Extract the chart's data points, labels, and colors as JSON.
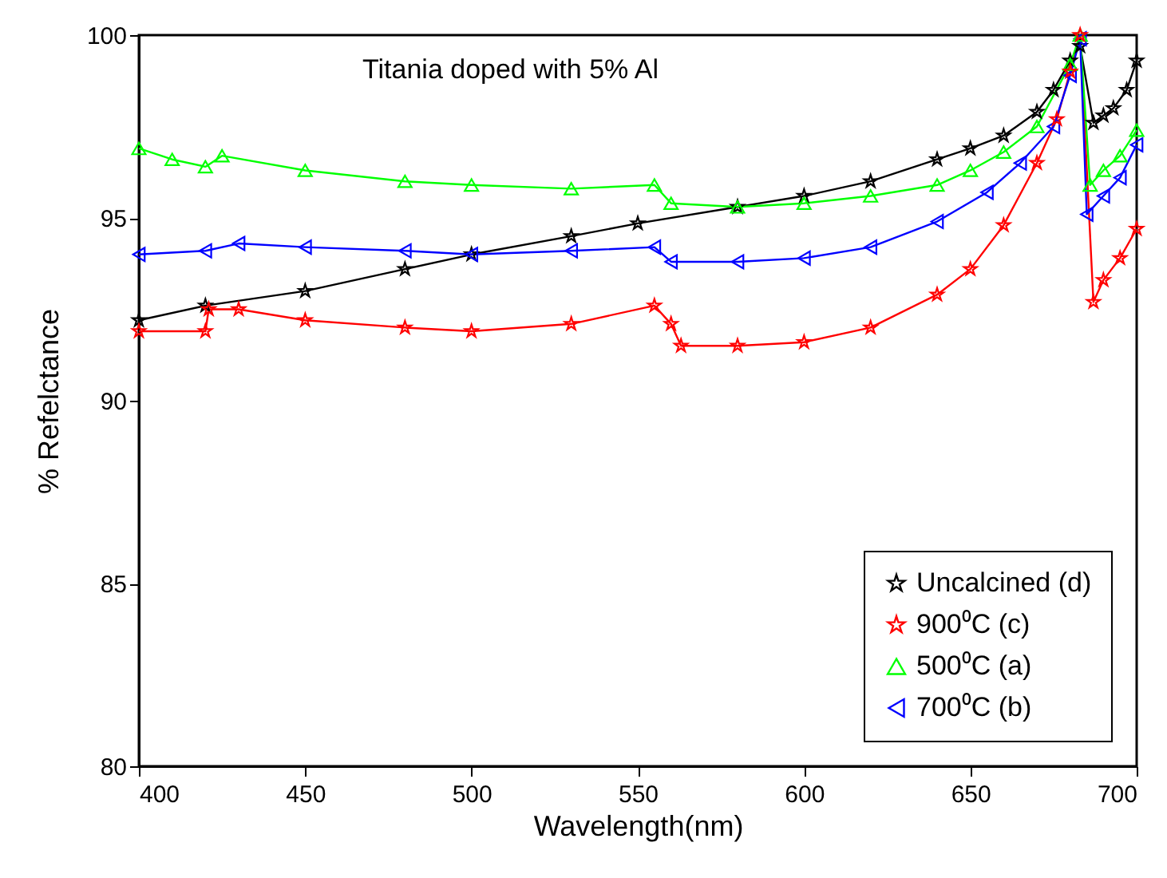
{
  "chart_data": {
    "type": "line",
    "annotations": [
      "Titania doped with 5% Al"
    ],
    "xlabel": "Wavelength(nm)",
    "ylabel": "% Refelctance",
    "xlim": [
      400,
      700
    ],
    "xticks": [
      400,
      450,
      500,
      550,
      600,
      650,
      700
    ],
    "ylim": [
      80,
      100
    ],
    "yticks": [
      80,
      85,
      90,
      95,
      100
    ],
    "grid": false,
    "legend": "bottom right",
    "line_style": "solid",
    "series": [
      {
        "name": "Uncalcined (d)",
        "color": "#000000",
        "marker": "star",
        "x": [
          400,
          420,
          450,
          480,
          500,
          530,
          550,
          580,
          600,
          620,
          640,
          650,
          660,
          670,
          675,
          680,
          683,
          687,
          690,
          693,
          697,
          700
        ],
        "values": [
          92.2,
          92.6,
          93.0,
          93.6,
          94.0,
          94.5,
          94.85,
          95.3,
          95.6,
          96.0,
          96.6,
          96.9,
          97.25,
          97.9,
          98.5,
          99.3,
          99.7,
          97.6,
          97.8,
          98.0,
          98.5,
          99.3
        ]
      },
      {
        "name": "900⁰C (c)",
        "color": "#ff0000",
        "marker": "star",
        "x": [
          400,
          420,
          421,
          430,
          450,
          480,
          500,
          530,
          555,
          560,
          563,
          580,
          600,
          620,
          640,
          650,
          660,
          670,
          676,
          680,
          683,
          687,
          690,
          695,
          700
        ],
        "values": [
          91.9,
          91.9,
          92.5,
          92.5,
          92.2,
          92.0,
          91.9,
          92.1,
          92.6,
          92.1,
          91.5,
          91.5,
          91.6,
          92.0,
          92.9,
          93.6,
          94.8,
          96.5,
          97.7,
          99.0,
          100,
          92.7,
          93.3,
          93.9,
          94.7
        ]
      },
      {
        "name": "500⁰C (a)",
        "color": "#00ff00",
        "marker": "triangle",
        "x": [
          400,
          410,
          420,
          425,
          450,
          480,
          500,
          530,
          555,
          560,
          580,
          600,
          620,
          640,
          650,
          660,
          670,
          680,
          683,
          686,
          690,
          695,
          700
        ],
        "values": [
          96.9,
          96.6,
          96.4,
          96.7,
          96.3,
          96.0,
          95.9,
          95.8,
          95.9,
          95.4,
          95.3,
          95.4,
          95.6,
          95.9,
          96.3,
          96.8,
          97.5,
          99.2,
          100,
          95.9,
          96.3,
          96.7,
          97.4
        ]
      },
      {
        "name": "700⁰C (b)",
        "color": "#0000ff",
        "marker": "triangle-left",
        "x": [
          400,
          420,
          430,
          450,
          480,
          500,
          530,
          555,
          560,
          580,
          600,
          620,
          640,
          655,
          665,
          675,
          680,
          683,
          685,
          690,
          695,
          700
        ],
        "values": [
          94.0,
          94.1,
          94.3,
          94.2,
          94.1,
          94.0,
          94.1,
          94.2,
          93.8,
          93.8,
          93.9,
          94.2,
          94.9,
          95.7,
          96.5,
          97.5,
          98.9,
          99.9,
          95.1,
          95.6,
          96.1,
          97.0
        ]
      }
    ]
  }
}
